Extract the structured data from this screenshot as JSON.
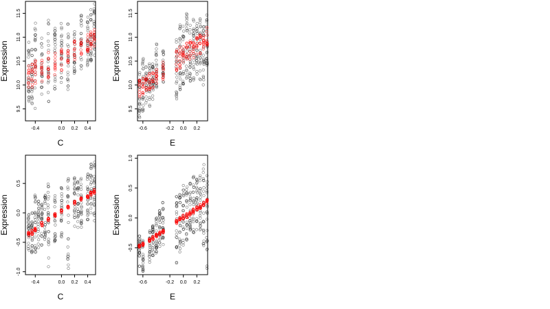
{
  "chart_data": [
    {
      "type": "scatter",
      "xlabel": "C",
      "ylabel": "Expression",
      "xticks": [
        "-0.4",
        "0.0",
        "0.2",
        "0.4"
      ],
      "yticks": [
        "9.5",
        "10.0",
        "10.5",
        "11.0",
        "11.5"
      ],
      "xlim": [
        -0.55,
        0.52
      ],
      "ylim": [
        9.25,
        11.75
      ],
      "observed_color": "#000000",
      "fitted_color": "#ff0000",
      "observed_summary": {
        "x": [
          -0.5,
          -0.45,
          -0.4,
          -0.3,
          -0.2,
          -0.1,
          0.0,
          0.1,
          0.2,
          0.3,
          0.4,
          0.45,
          0.5
        ],
        "y_min": [
          9.4,
          9.6,
          9.5,
          9.8,
          9.6,
          9.8,
          10.0,
          9.9,
          10.2,
          10.3,
          10.4,
          10.5,
          10.6
        ],
        "y_max": [
          10.9,
          10.8,
          11.3,
          11.0,
          11.4,
          11.2,
          11.3,
          11.3,
          11.2,
          11.5,
          11.5,
          11.6,
          11.7
        ]
      },
      "fitted_summary": {
        "x": [
          -0.5,
          -0.45,
          -0.4,
          -0.3,
          -0.2,
          -0.1,
          0.0,
          0.1,
          0.2,
          0.3,
          0.4,
          0.45,
          0.5
        ],
        "y_low": [
          9.9,
          9.95,
          10.0,
          10.05,
          10.1,
          10.2,
          10.3,
          10.4,
          10.5,
          10.6,
          10.7,
          10.75,
          10.8
        ],
        "y_high": [
          10.4,
          10.45,
          10.55,
          10.6,
          10.7,
          10.75,
          10.8,
          10.85,
          10.95,
          11.0,
          11.1,
          11.15,
          11.2
        ]
      }
    },
    {
      "type": "scatter",
      "xlabel": "E",
      "ylabel": "Expression",
      "xticks": [
        "-0.6",
        "-0.2",
        "0.0",
        "0.2"
      ],
      "yticks": [
        "9.5",
        "10.0",
        "10.5",
        "11.0",
        "11.5"
      ],
      "xlim": [
        -0.68,
        0.36
      ],
      "ylim": [
        9.25,
        11.75
      ],
      "observed_color": "#000000",
      "fitted_color": "#ff0000",
      "observed_summary": {
        "x": [
          -0.65,
          -0.6,
          -0.55,
          -0.5,
          -0.45,
          -0.4,
          -0.3,
          -0.1,
          -0.05,
          0.0,
          0.05,
          0.1,
          0.15,
          0.2,
          0.25,
          0.3,
          0.35
        ],
        "y_min": [
          9.3,
          9.4,
          9.6,
          9.5,
          9.7,
          9.9,
          10.0,
          9.7,
          9.9,
          10.0,
          10.1,
          10.0,
          10.1,
          10.2,
          10.1,
          10.0,
          10.4
        ],
        "y_max": [
          10.3,
          10.6,
          10.4,
          10.5,
          10.5,
          10.9,
          10.8,
          11.0,
          11.3,
          11.3,
          11.5,
          11.3,
          11.5,
          11.4,
          11.5,
          11.4,
          11.5
        ]
      },
      "fitted_summary": {
        "x": [
          -0.65,
          -0.6,
          -0.55,
          -0.5,
          -0.45,
          -0.4,
          -0.3,
          -0.1,
          -0.05,
          0.0,
          0.05,
          0.1,
          0.15,
          0.2,
          0.25,
          0.3,
          0.35
        ],
        "y_low": [
          9.75,
          9.8,
          9.85,
          9.9,
          9.95,
          10.0,
          10.1,
          10.3,
          10.35,
          10.4,
          10.45,
          10.5,
          10.55,
          10.6,
          10.65,
          10.7,
          10.75
        ],
        "y_high": [
          10.1,
          10.15,
          10.2,
          10.25,
          10.3,
          10.35,
          10.5,
          10.75,
          10.8,
          10.85,
          10.9,
          10.95,
          11.0,
          11.05,
          11.1,
          11.15,
          11.2
        ]
      }
    },
    {
      "type": "scatter",
      "xlabel": "C",
      "ylabel": "Expression",
      "xticks": [
        "-0.4",
        "0.0",
        "0.2",
        "0.4"
      ],
      "yticks": [
        "-1.0",
        "-0.5",
        "0.0",
        "0.5"
      ],
      "xlim": [
        -0.55,
        0.52
      ],
      "ylim": [
        -1.05,
        0.98
      ],
      "observed_color": "#000000",
      "fitted_color": "#ff0000",
      "observed_summary": {
        "x": [
          -0.5,
          -0.45,
          -0.4,
          -0.35,
          -0.3,
          -0.25,
          -0.2,
          -0.1,
          0.0,
          0.1,
          0.2,
          0.25,
          0.3,
          0.4,
          0.45,
          0.5
        ],
        "y_min": [
          -0.7,
          -0.75,
          -0.7,
          -0.6,
          -0.55,
          -0.5,
          -1.0,
          -0.5,
          -0.45,
          -0.95,
          -0.3,
          -0.25,
          -0.3,
          -0.2,
          -0.1,
          -0.15
        ],
        "y_max": [
          0.0,
          0.1,
          0.45,
          0.2,
          0.15,
          0.3,
          0.55,
          0.4,
          0.45,
          0.6,
          0.6,
          0.55,
          0.7,
          0.75,
          0.85,
          0.9
        ]
      },
      "fitted_summary": {
        "x": [
          -0.5,
          -0.45,
          -0.4,
          -0.3,
          -0.2,
          -0.1,
          0.0,
          0.1,
          0.2,
          0.3,
          0.4,
          0.45,
          0.5
        ],
        "y_low": [
          -0.4,
          -0.37,
          -0.32,
          -0.22,
          -0.14,
          -0.06,
          0.0,
          0.07,
          0.15,
          0.2,
          0.26,
          0.3,
          0.33
        ],
        "y_high": [
          -0.32,
          -0.29,
          -0.25,
          -0.16,
          -0.09,
          -0.01,
          0.05,
          0.12,
          0.2,
          0.26,
          0.32,
          0.37,
          0.4
        ]
      }
    },
    {
      "type": "scatter",
      "xlabel": "E",
      "ylabel": "Expression",
      "xticks": [
        "-0.6",
        "-0.2",
        "0.0",
        "0.2"
      ],
      "yticks": [
        "-0.5",
        "0.0",
        "0.5",
        "1.0"
      ],
      "xlim": [
        -0.68,
        0.36
      ],
      "ylim": [
        -0.95,
        1.05
      ],
      "observed_color": "#000000",
      "fitted_color": "#ff0000",
      "observed_summary": {
        "x": [
          -0.65,
          -0.6,
          -0.5,
          -0.45,
          -0.4,
          -0.35,
          -0.3,
          -0.1,
          -0.05,
          0.0,
          0.05,
          0.1,
          0.15,
          0.2,
          0.25,
          0.3,
          0.35
        ],
        "y_min": [
          -0.85,
          -0.9,
          -0.75,
          -0.7,
          -0.6,
          -0.5,
          -0.45,
          -0.8,
          -0.6,
          -0.5,
          -0.4,
          -0.3,
          -0.3,
          -0.2,
          -0.25,
          -0.5,
          -0.9
        ],
        "y_max": [
          -0.3,
          -0.35,
          -0.2,
          -0.1,
          0.0,
          0.15,
          0.3,
          0.4,
          0.45,
          0.55,
          0.55,
          0.6,
          0.7,
          0.65,
          0.75,
          0.9,
          0.95
        ]
      },
      "fitted_summary": {
        "x": [
          -0.65,
          -0.6,
          -0.5,
          -0.45,
          -0.4,
          -0.35,
          -0.3,
          -0.1,
          -0.05,
          0.0,
          0.05,
          0.1,
          0.15,
          0.2,
          0.25,
          0.3,
          0.35
        ],
        "y_low": [
          -0.5,
          -0.47,
          -0.4,
          -0.36,
          -0.32,
          -0.28,
          -0.25,
          -0.1,
          -0.06,
          -0.03,
          0.0,
          0.04,
          0.08,
          0.12,
          0.16,
          0.2,
          0.24
        ],
        "y_high": [
          -0.45,
          -0.42,
          -0.35,
          -0.31,
          -0.27,
          -0.23,
          -0.2,
          -0.03,
          0.01,
          0.05,
          0.08,
          0.11,
          0.15,
          0.19,
          0.23,
          0.27,
          0.31
        ]
      }
    }
  ]
}
